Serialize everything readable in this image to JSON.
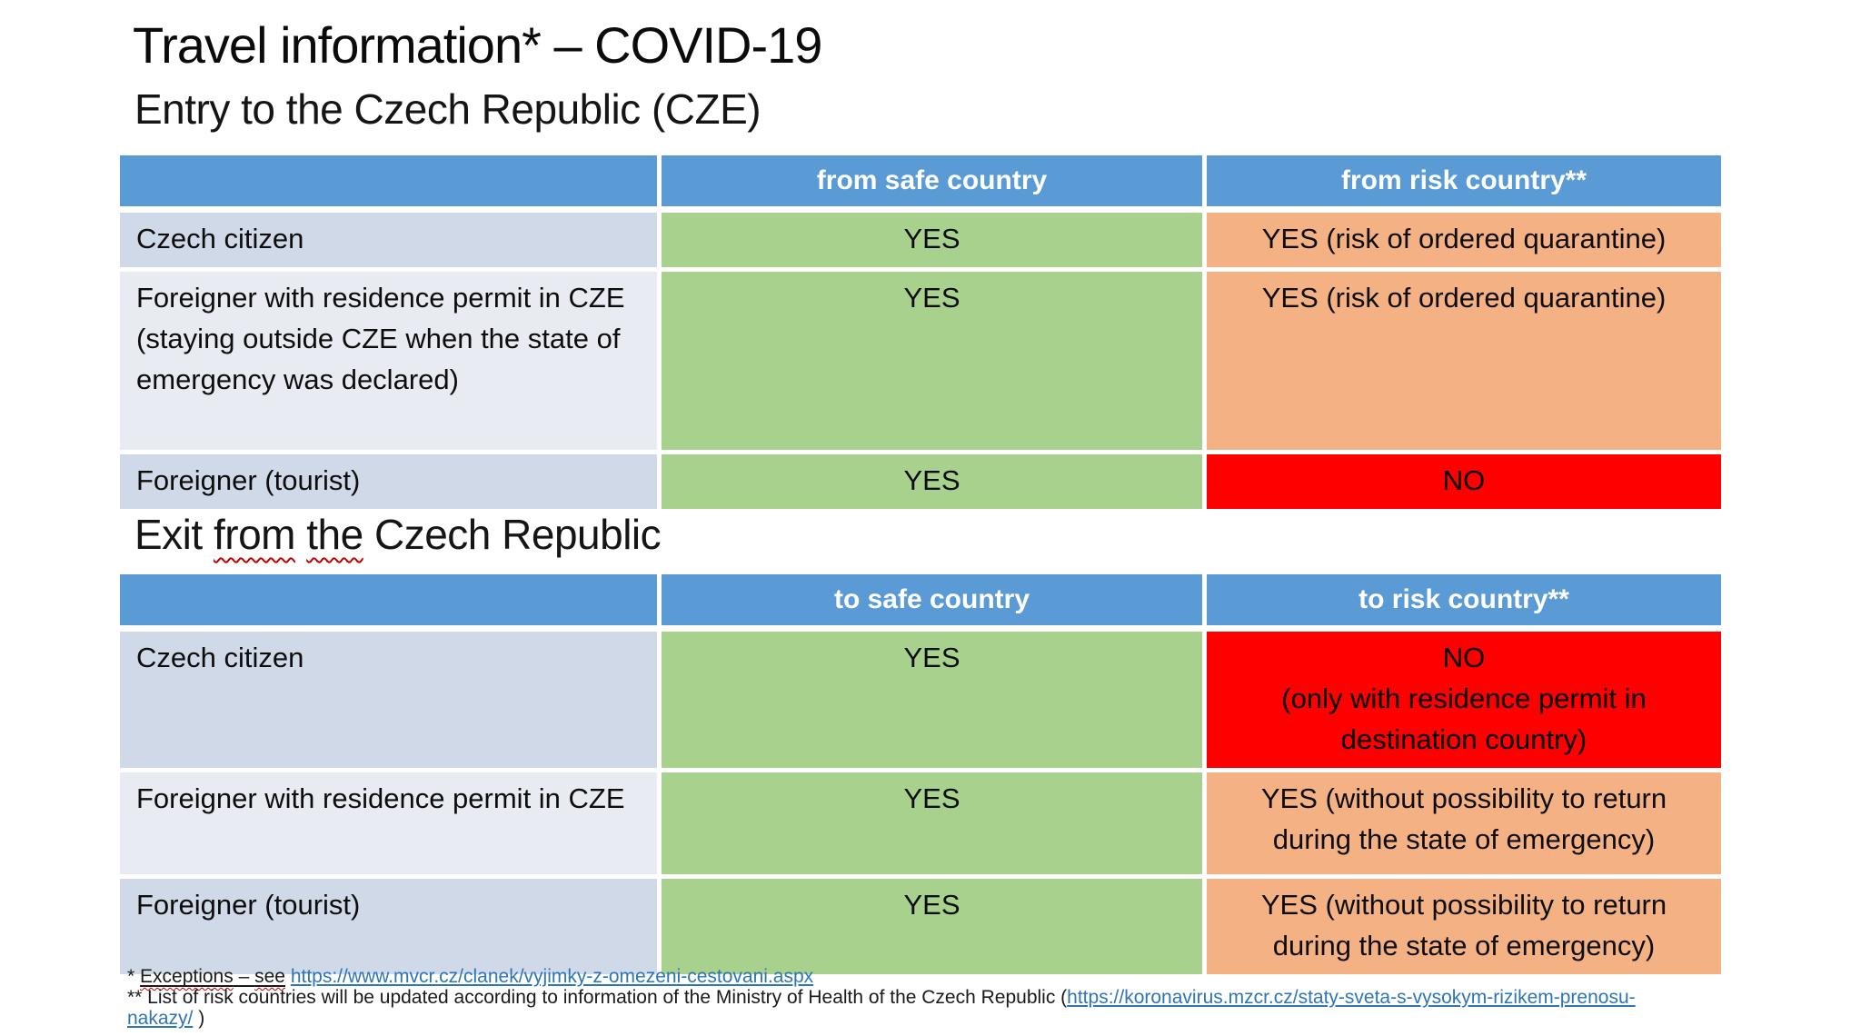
{
  "slide": {
    "title": "Travel information* – COVID-19",
    "entry_heading": "Entry to the Czech Republic (CZE)",
    "exit_heading": {
      "pre": "Exit ",
      "wavy1": "from",
      "mid": " ",
      "wavy2": "the",
      "post": " Czech Republic"
    }
  },
  "entry_table": {
    "columns": {
      "label": "",
      "safe": "from safe country",
      "risk": "from risk country**"
    },
    "rows": [
      {
        "label": "Czech citizen",
        "safe": "YES",
        "risk": "YES (risk of ordered quarantine)"
      },
      {
        "label": "Foreigner with residence permit in CZE\n(staying outside CZE when the state of emergency was declared)",
        "safe": "YES",
        "risk": "YES (risk of ordered quarantine)"
      },
      {
        "label": "Foreigner (tourist)",
        "safe": "YES",
        "risk": "NO"
      }
    ]
  },
  "exit_table": {
    "columns": {
      "label": "",
      "safe": "to safe country",
      "risk": "to risk country**"
    },
    "rows": [
      {
        "label": "Czech citizen",
        "safe": "YES",
        "risk": "NO\n(only with residence permit in destination country)"
      },
      {
        "label": "Foreigner with residence permit in CZE",
        "safe": "YES",
        "risk": "YES (without possibility to return during the state of emergency)"
      },
      {
        "label": "Foreigner (tourist)",
        "safe": "YES",
        "risk": "YES (without possibility to return during the state of emergency)"
      }
    ]
  },
  "footnotes": {
    "f1": {
      "marker": "* ",
      "u1": "Exceptions",
      "mid": " – ",
      "u2": "see",
      "space": " ",
      "link": "https://www.mvcr.cz/clanek/vyjimky-z-omezeni-cestovani.aspx"
    },
    "f2": {
      "prefix": "** List of risk countries will be updated according to information of the Ministry of Health of the Czech Republic (",
      "link_line1": "https://koronavirus.mzcr.cz/staty-sveta-s-vysokym-rizikem-prenosu-",
      "link_line2": "nakazy/",
      "suffix": " )"
    }
  },
  "colors": {
    "header_blue": "#5B9BD5",
    "band_dark": "#CFD9E8",
    "band_light": "#E9EBF2",
    "green": "#A9D18E",
    "orange": "#F4B183",
    "red": "#FF0000",
    "link": "#2E75B6",
    "squiggle": "#C00000"
  }
}
